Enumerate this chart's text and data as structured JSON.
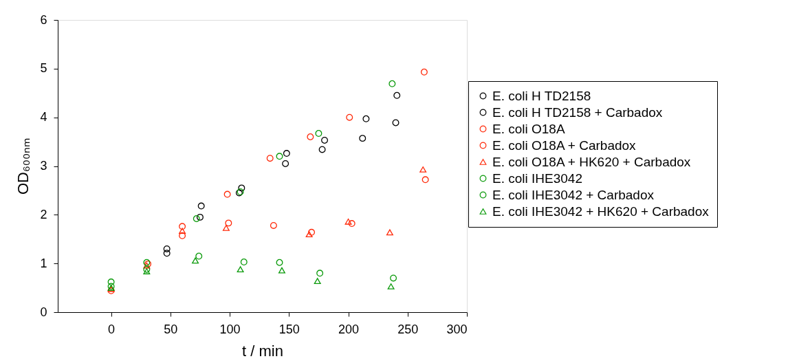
{
  "chart_data": {
    "type": "scatter",
    "xlabel": "t / min",
    "ylabel": "OD₆₀₀ₙₘ",
    "xlim": [
      -45,
      300
    ],
    "xticks": [
      0,
      50,
      100,
      150,
      200,
      250,
      300
    ],
    "ylim": [
      0,
      6
    ],
    "yticks": [
      0,
      1,
      2,
      3,
      4,
      5,
      6
    ],
    "grid": false,
    "legend": "right",
    "series": [
      {
        "name": "E. coli H TD2158",
        "color": "#000000",
        "marker": "circle",
        "x": [
          47,
          75,
          108,
          147,
          178,
          212,
          240
        ],
        "values": [
          1.21,
          1.95,
          2.45,
          3.05,
          3.34,
          3.57,
          3.89
        ]
      },
      {
        "name": "E. coli H TD2158 + Carbadox",
        "color": "#000000",
        "marker": "circle",
        "x": [
          47,
          76,
          110,
          148,
          180,
          215,
          241
        ],
        "values": [
          1.3,
          2.18,
          2.55,
          3.26,
          3.53,
          3.97,
          4.45
        ]
      },
      {
        "name": "E. coli O18A",
        "color": "#ff2a0a",
        "marker": "circle",
        "x": [
          0,
          60,
          98,
          134,
          168,
          201,
          264
        ],
        "values": [
          0.44,
          1.76,
          2.42,
          3.16,
          3.6,
          4.0,
          4.93
        ]
      },
      {
        "name": "E. coli O18A + Carbadox",
        "color": "#ff2a0a",
        "marker": "circle",
        "x": [
          31,
          60,
          99,
          137,
          169,
          203,
          265
        ],
        "values": [
          0.99,
          1.57,
          1.83,
          1.78,
          1.64,
          1.82,
          2.72
        ]
      },
      {
        "name": "E. coli O18A + HK620 + Carbadox",
        "color": "#ff2a0a",
        "marker": "triangle",
        "x": [
          0,
          30,
          60,
          97,
          167,
          200,
          235,
          263
        ],
        "values": [
          0.48,
          0.96,
          1.67,
          1.73,
          1.6,
          1.86,
          1.64,
          2.93
        ]
      },
      {
        "name": "E. coli IHE3042",
        "color": "#0a9a0a",
        "marker": "circle",
        "x": [
          0,
          30,
          72,
          109,
          142,
          175,
          237
        ],
        "values": [
          0.62,
          1.02,
          1.92,
          2.47,
          3.2,
          3.67,
          4.69
        ]
      },
      {
        "name": "E. coli IHE3042 + Carbadox",
        "color": "#0a9a0a",
        "marker": "circle",
        "x": [
          0,
          30,
          74,
          112,
          142,
          176,
          238
        ],
        "values": [
          0.53,
          0.88,
          1.15,
          1.03,
          1.02,
          0.8,
          0.7
        ]
      },
      {
        "name": "E. coli IHE3042 + HK620 + Carbadox",
        "color": "#0a9a0a",
        "marker": "triangle",
        "x": [
          0,
          30,
          71,
          109,
          144,
          174,
          236
        ],
        "values": [
          0.5,
          0.84,
          1.06,
          0.88,
          0.86,
          0.64,
          0.53
        ]
      }
    ]
  }
}
